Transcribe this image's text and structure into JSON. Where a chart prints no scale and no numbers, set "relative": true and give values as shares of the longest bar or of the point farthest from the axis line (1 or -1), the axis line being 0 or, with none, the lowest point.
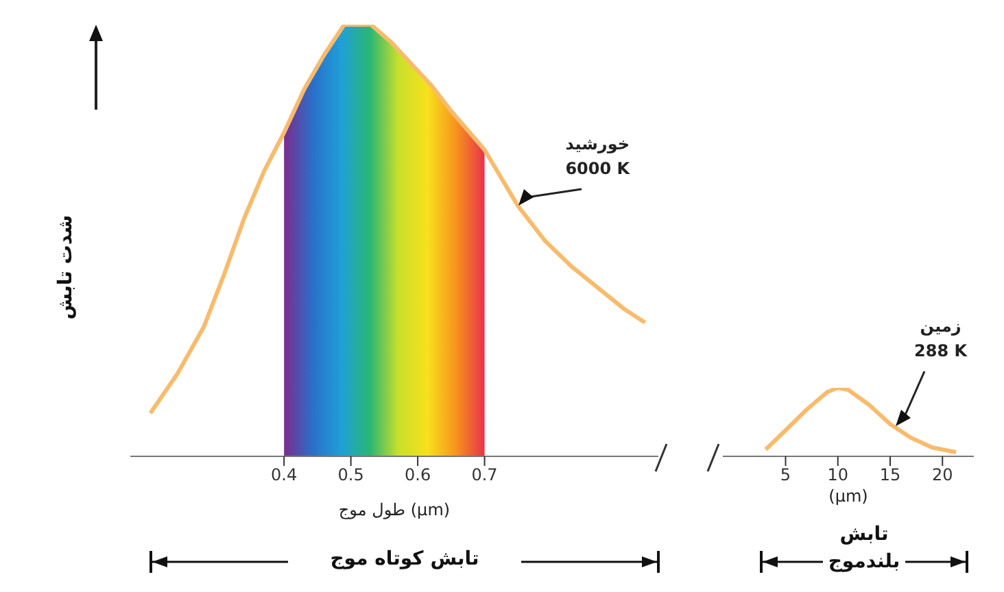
{
  "chart_data": [
    {
      "type": "line",
      "ylabel": "شدت تابش",
      "xlabel": "طول موج (µm)",
      "relative": true,
      "tick_labels": "x",
      "legend": false,
      "grid": false,
      "marker": "none",
      "xlim": [
        0.17,
        0.96
      ],
      "xticks": [
        0.4,
        0.5,
        0.6,
        0.7
      ],
      "series": [
        {
          "color": "#f8bb6c",
          "x": [
            0.2,
            0.24,
            0.28,
            0.31,
            0.34,
            0.37,
            0.4,
            0.43,
            0.46,
            0.49,
            0.51,
            0.53,
            0.56,
            0.59,
            0.62,
            0.65,
            0.7,
            0.75,
            0.79,
            0.83,
            0.87,
            0.91,
            0.94
          ],
          "values": [
            0.1,
            0.19,
            0.3,
            0.42,
            0.55,
            0.66,
            0.75,
            0.85,
            0.93,
            1.0,
            1.0,
            1.0,
            0.96,
            0.91,
            0.86,
            0.8,
            0.71,
            0.58,
            0.5,
            0.44,
            0.39,
            0.34,
            0.31
          ]
        }
      ],
      "bands": [
        {
          "axis": "x",
          "from": 0.4,
          "to": 0.7
        }
      ],
      "annotations": [
        {
          "text": "خورشید 6000 K",
          "x": 0.75,
          "y": 0.58
        },
        "تابش کوتاه موج"
      ]
    },
    {
      "type": "line",
      "xlabel": "(µm)",
      "relative": true,
      "tick_labels": "x",
      "legend": false,
      "grid": false,
      "marker": "none",
      "xlim": [
        -1,
        23
      ],
      "xticks": [
        5,
        10,
        15,
        20
      ],
      "series": [
        {
          "color": "#f8bb6c",
          "x": [
            3.1,
            5,
            7,
            9,
            10,
            11,
            13,
            15,
            17,
            19,
            21.3
          ],
          "values": [
            0.1,
            0.38,
            0.68,
            0.94,
            1.0,
            0.97,
            0.75,
            0.47,
            0.27,
            0.13,
            0.06
          ]
        }
      ],
      "annotations": [
        {
          "text": "زمین 288 K",
          "x": 15.5,
          "y": 0.45
        },
        "تابش بلندموج"
      ]
    }
  ]
}
